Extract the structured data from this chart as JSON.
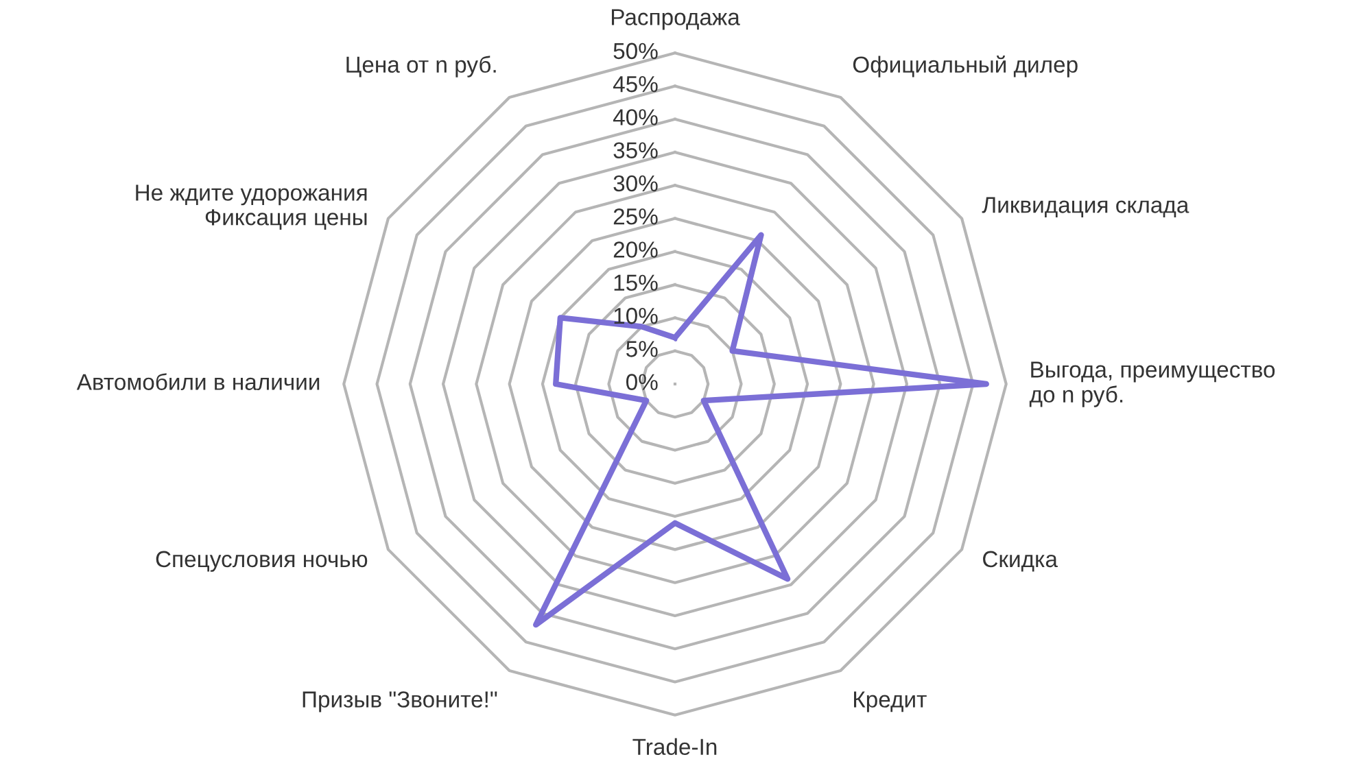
{
  "chart_data": {
    "type": "radar",
    "categories": [
      "Распродажа",
      "Официальный дилер",
      "Ликвидация склада",
      "Выгода, преимущество\nдо n руб.",
      "Скидка",
      "Кредит",
      "Trade-In",
      "Призыв \"Звоните!\"",
      "Спецусловия ночью",
      "Автомобили в наличии",
      "Не ждите удорожания\nФиксация цены",
      "Цена от n руб."
    ],
    "series": [
      {
        "color": "#7b6fd6",
        "values": [
          7,
          26,
          10,
          47,
          5,
          34,
          21,
          42,
          5,
          18,
          20,
          10
        ]
      }
    ],
    "ylim": [
      0,
      50
    ],
    "yticks": [
      {
        "value": 0,
        "label": "0%"
      },
      {
        "value": 5,
        "label": "5%"
      },
      {
        "value": 10,
        "label": "10%"
      },
      {
        "value": 15,
        "label": "15%"
      },
      {
        "value": 20,
        "label": "20%"
      },
      {
        "value": 25,
        "label": "25%"
      },
      {
        "value": 30,
        "label": "30%"
      },
      {
        "value": 35,
        "label": "35%"
      },
      {
        "value": 40,
        "label": "40%"
      },
      {
        "value": 45,
        "label": "45%"
      },
      {
        "value": 50,
        "label": "50%"
      }
    ],
    "grid": true,
    "line_style": "solid",
    "marker": "none"
  }
}
